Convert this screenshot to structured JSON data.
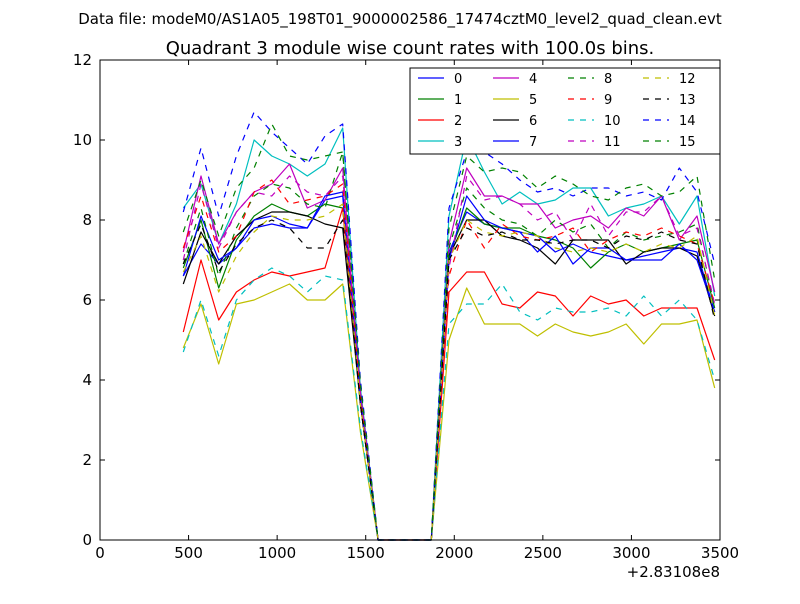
{
  "figure": {
    "suptitle": "Data file: modeM0/AS1A05_198T01_9000002586_17474cztM0_level2_quad_clean.evt"
  },
  "chart_data": {
    "type": "line",
    "title": "Quadrant 3 module wise count rates with 100.0s bins.",
    "xlabel": "",
    "ylabel": "",
    "x_offset_label": "+2.83108e8",
    "xlim": [
      0,
      3500
    ],
    "ylim": [
      0,
      12
    ],
    "xticks": [
      0,
      500,
      1000,
      1500,
      2000,
      2500,
      3000,
      3500
    ],
    "yticks": [
      0,
      2,
      4,
      6,
      8,
      10,
      12
    ],
    "legend": "upper-right",
    "x": [
      470,
      570,
      670,
      770,
      870,
      970,
      1070,
      1170,
      1270,
      1370,
      1470,
      1570,
      1670,
      1770,
      1870,
      1970,
      2070,
      2170,
      2270,
      2370,
      2470,
      2570,
      2670,
      2770,
      2870,
      2970,
      3070,
      3170,
      3270,
      3370,
      3470
    ],
    "series": [
      {
        "name": "0",
        "color": "#0000ff",
        "dash": "solid",
        "values": [
          6.6,
          7.4,
          6.9,
          7.3,
          7.8,
          7.9,
          7.8,
          7.8,
          8.5,
          8.6,
          3.4,
          0,
          0,
          0,
          0,
          7.2,
          8.2,
          7.9,
          7.8,
          7.7,
          7.6,
          7.2,
          7.4,
          7.2,
          7.1,
          7.0,
          7.1,
          7.2,
          7.3,
          7.2,
          5.7
        ]
      },
      {
        "name": "1",
        "color": "#008000",
        "dash": "solid",
        "values": [
          6.8,
          8.0,
          6.3,
          7.5,
          8.1,
          8.4,
          8.2,
          8.1,
          8.4,
          8.3,
          3.5,
          0,
          0,
          0,
          0,
          7.1,
          8.3,
          7.9,
          7.8,
          7.8,
          7.6,
          7.5,
          7.3,
          6.8,
          7.2,
          7.4,
          7.2,
          7.3,
          7.4,
          7.5,
          5.8
        ]
      },
      {
        "name": "2",
        "color": "#ff0000",
        "dash": "solid",
        "values": [
          5.2,
          7.0,
          5.5,
          6.2,
          6.5,
          6.7,
          6.6,
          6.7,
          6.8,
          8.3,
          3.4,
          0,
          0,
          0,
          0,
          6.2,
          6.7,
          6.7,
          5.9,
          5.8,
          6.2,
          6.1,
          5.6,
          6.1,
          5.9,
          6.0,
          5.6,
          5.8,
          5.8,
          5.8,
          4.5
        ]
      },
      {
        "name": "3",
        "color": "#00bfbf",
        "dash": "solid",
        "values": [
          8.3,
          8.9,
          7.4,
          8.4,
          10.0,
          9.6,
          9.4,
          9.1,
          9.4,
          10.3,
          3.8,
          0,
          0,
          0,
          0,
          8.1,
          10.1,
          9.2,
          8.4,
          8.7,
          8.4,
          8.5,
          8.8,
          8.8,
          8.1,
          8.3,
          8.4,
          8.6,
          7.9,
          8.6,
          6.1
        ]
      },
      {
        "name": "4",
        "color": "#bf00bf",
        "dash": "solid",
        "values": [
          7.2,
          9.1,
          7.4,
          8.2,
          8.7,
          8.9,
          9.4,
          8.3,
          8.5,
          9.3,
          3.6,
          0,
          0,
          0,
          0,
          7.4,
          9.3,
          8.6,
          8.6,
          8.4,
          8.4,
          7.8,
          8.0,
          8.1,
          7.8,
          8.3,
          8.1,
          8.6,
          7.5,
          8.1,
          6.2
        ]
      },
      {
        "name": "5",
        "color": "#bfbf00",
        "dash": "solid",
        "values": [
          4.8,
          5.9,
          4.4,
          5.9,
          6.0,
          6.2,
          6.4,
          6.0,
          6.0,
          6.4,
          2.7,
          0,
          0,
          0,
          0,
          5.0,
          6.3,
          5.4,
          5.4,
          5.4,
          5.1,
          5.4,
          5.2,
          5.1,
          5.2,
          5.4,
          4.9,
          5.4,
          5.4,
          5.5,
          3.8
        ]
      },
      {
        "name": "6",
        "color": "#000000",
        "dash": "solid",
        "values": [
          6.4,
          7.7,
          6.9,
          7.6,
          8.0,
          8.2,
          8.2,
          8.1,
          7.9,
          7.8,
          3.4,
          0,
          0,
          0,
          0,
          7.1,
          8.0,
          8.0,
          7.6,
          7.5,
          7.3,
          6.9,
          7.5,
          7.5,
          7.5,
          6.9,
          7.2,
          7.3,
          7.3,
          7.1,
          5.6
        ]
      },
      {
        "name": "7",
        "color": "#0000ff",
        "dash": "solid",
        "values": [
          6.6,
          8.1,
          7.0,
          7.3,
          8.0,
          8.1,
          7.9,
          7.8,
          8.6,
          8.7,
          3.5,
          0,
          0,
          0,
          0,
          7.0,
          8.6,
          8.0,
          7.8,
          7.7,
          7.2,
          7.6,
          6.9,
          7.3,
          7.3,
          7.0,
          7.0,
          7.0,
          7.4,
          7.0,
          5.7
        ]
      },
      {
        "name": "8",
        "color": "#008000",
        "dash": "dashed",
        "values": [
          6.9,
          8.3,
          6.6,
          7.8,
          8.6,
          8.9,
          8.8,
          8.4,
          8.3,
          9.7,
          3.7,
          0,
          0,
          0,
          0,
          7.3,
          8.8,
          8.3,
          8.0,
          7.9,
          7.6,
          8.0,
          7.7,
          7.9,
          7.3,
          7.7,
          7.5,
          7.6,
          7.7,
          7.9,
          5.8
        ]
      },
      {
        "name": "9",
        "color": "#ff0000",
        "dash": "dashed",
        "values": [
          7.3,
          8.6,
          7.2,
          7.6,
          8.7,
          9.0,
          8.4,
          8.5,
          8.6,
          8.9,
          3.6,
          0,
          0,
          0,
          0,
          6.6,
          8.0,
          7.3,
          7.9,
          7.6,
          7.5,
          7.6,
          7.8,
          7.2,
          7.5,
          7.7,
          7.6,
          7.8,
          7.6,
          7.4,
          5.9
        ]
      },
      {
        "name": "10",
        "color": "#00bfbf",
        "dash": "dashed",
        "values": [
          4.7,
          6.0,
          4.6,
          6.0,
          6.5,
          6.8,
          6.6,
          6.2,
          6.6,
          6.5,
          2.8,
          0,
          0,
          0,
          0,
          5.4,
          5.9,
          5.9,
          6.4,
          5.7,
          5.5,
          5.8,
          5.7,
          5.7,
          5.8,
          5.6,
          6.1,
          5.6,
          6.0,
          5.5,
          4.0
        ]
      },
      {
        "name": "11",
        "color": "#bf00bf",
        "dash": "dashed",
        "values": [
          7.0,
          8.9,
          7.3,
          8.2,
          8.7,
          8.6,
          9.1,
          8.7,
          8.6,
          9.1,
          3.7,
          0,
          0,
          0,
          0,
          6.8,
          9.1,
          8.5,
          8.6,
          8.4,
          8.0,
          8.2,
          7.5,
          8.4,
          7.6,
          8.2,
          8.2,
          8.6,
          7.6,
          7.8,
          5.9
        ]
      },
      {
        "name": "12",
        "color": "#bfbf00",
        "dash": "dashed",
        "values": [
          6.7,
          7.6,
          6.2,
          7.1,
          7.7,
          8.1,
          8.0,
          8.0,
          8.1,
          8.4,
          3.4,
          0,
          0,
          0,
          0,
          7.0,
          8.0,
          7.7,
          7.6,
          7.7,
          7.6,
          7.3,
          7.2,
          7.3,
          7.2,
          7.4,
          7.2,
          7.4,
          7.3,
          7.6,
          5.6
        ]
      },
      {
        "name": "13",
        "color": "#000000",
        "dash": "dashed",
        "values": [
          6.9,
          7.9,
          6.7,
          7.4,
          7.8,
          8.0,
          7.8,
          7.3,
          7.3,
          8.0,
          3.4,
          0,
          0,
          0,
          0,
          7.0,
          7.8,
          7.6,
          7.7,
          7.5,
          7.5,
          7.4,
          7.5,
          7.5,
          7.3,
          7.6,
          7.5,
          7.7,
          7.5,
          7.4,
          5.5
        ]
      },
      {
        "name": "14",
        "color": "#0000ff",
        "dash": "dashed",
        "values": [
          8.2,
          9.8,
          8.1,
          9.6,
          10.7,
          10.2,
          9.8,
          9.4,
          10.1,
          10.4,
          4.0,
          0,
          0,
          0,
          0,
          8.3,
          9.7,
          9.7,
          9.4,
          9.0,
          8.7,
          8.8,
          8.6,
          8.8,
          8.8,
          8.6,
          8.7,
          8.5,
          9.3,
          8.7,
          6.9
        ]
      },
      {
        "name": "15",
        "color": "#008000",
        "dash": "dashed",
        "values": [
          7.7,
          9.0,
          7.6,
          8.8,
          9.3,
          10.4,
          9.6,
          9.5,
          9.6,
          9.7,
          3.9,
          0,
          0,
          0,
          0,
          7.8,
          9.6,
          9.2,
          9.3,
          9.2,
          8.8,
          9.1,
          8.9,
          8.6,
          8.5,
          8.8,
          8.9,
          8.6,
          8.7,
          9.1,
          6.5
        ]
      }
    ]
  }
}
